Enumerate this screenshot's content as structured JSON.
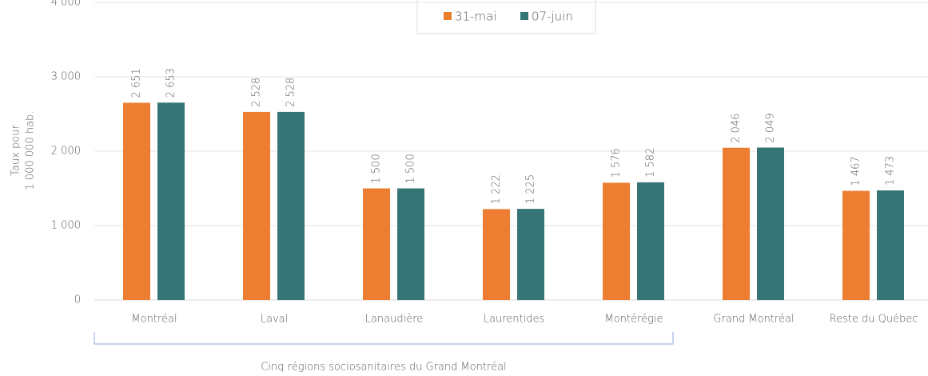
{
  "chart_data": {
    "type": "bar",
    "y_axis_label": [
      "Taux pour",
      "1 000 000 hab."
    ],
    "categories": [
      "Montréal",
      "Laval",
      "Lanaudière",
      "Laurentides",
      "Montérégie",
      "Grand Montréal",
      "Reste du Québec"
    ],
    "series": [
      {
        "name": "31-mai",
        "color": "#ED7D31",
        "values": [
          2651,
          2528,
          1500,
          1222,
          1576,
          2046,
          1467
        ],
        "value_labels": [
          "2 651",
          "2 528",
          "1 500",
          "1 222",
          "1 576",
          "2 046",
          "1 467"
        ]
      },
      {
        "name": "07-juin",
        "color": "#367576",
        "values": [
          2653,
          2528,
          1500,
          1225,
          1582,
          2049,
          1473
        ],
        "value_labels": [
          "2 653",
          "2 528",
          "1 500",
          "1 225",
          "1 582",
          "2 049",
          "1 473"
        ]
      }
    ],
    "ylim": [
      0,
      4000
    ],
    "yticks": [
      {
        "value": 0,
        "label": "0"
      },
      {
        "value": 1000,
        "label": "1 000"
      },
      {
        "value": 2000,
        "label": "2 000"
      },
      {
        "value": 3000,
        "label": "3 000"
      },
      {
        "value": 4000,
        "label": "4 000"
      }
    ],
    "grid": true,
    "legend": "top",
    "group_label": "Cinq régions sociosanitaires du Grand Montréal"
  }
}
